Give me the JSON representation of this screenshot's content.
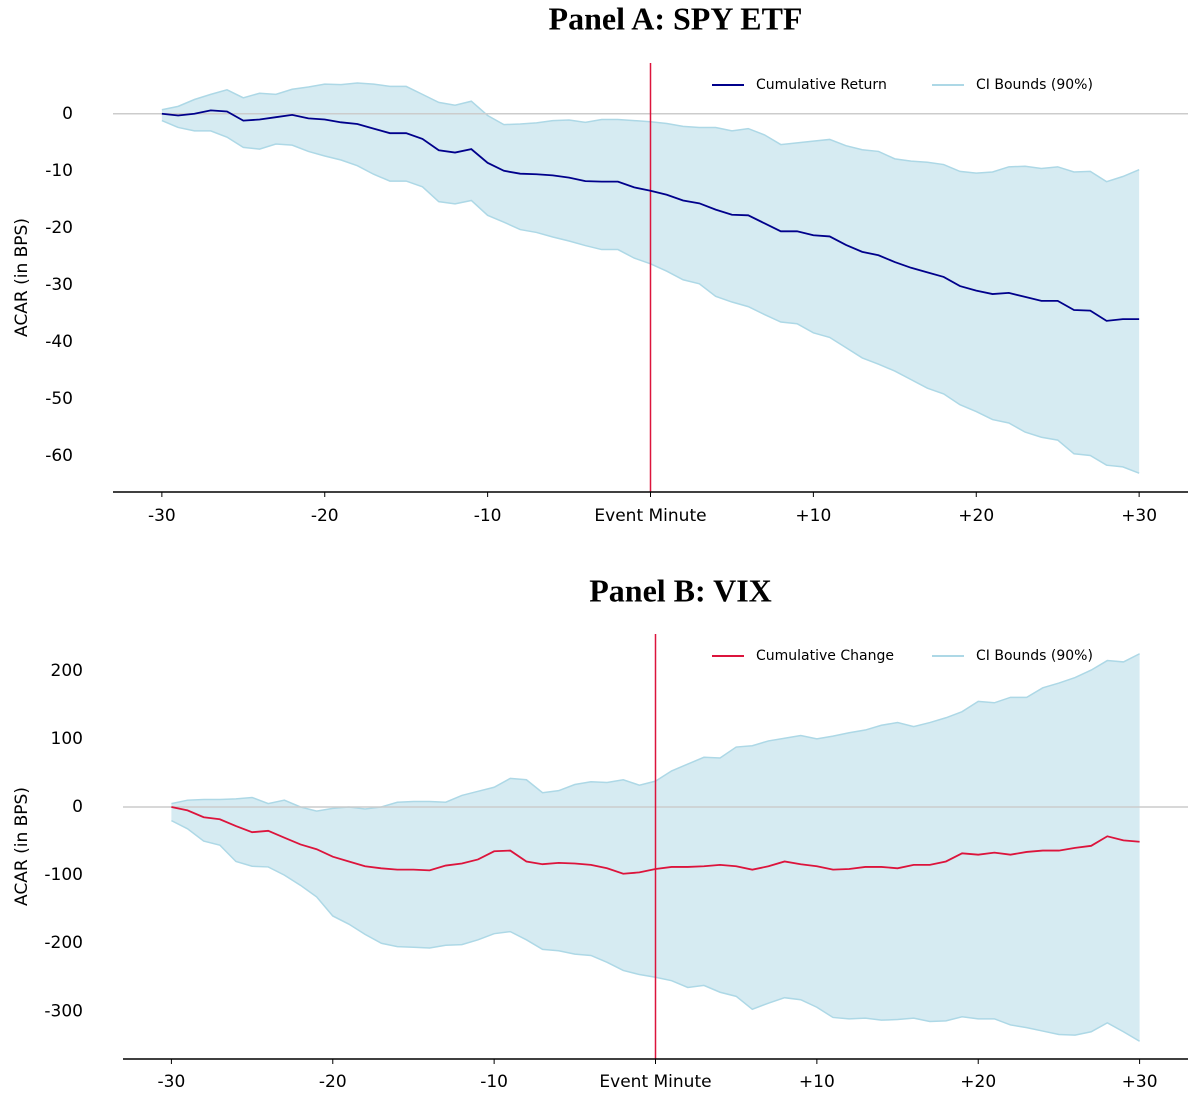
{
  "chart_data": [
    {
      "type": "line",
      "title": "Panel A: SPY ETF",
      "ylabel": "ACAR (in BPS)",
      "x": [
        -30,
        -29,
        -28,
        -27,
        -26,
        -25,
        -24,
        -23,
        -22,
        -21,
        -20,
        -19,
        -18,
        -17,
        -16,
        -15,
        -14,
        -13,
        -12,
        -11,
        -10,
        -9,
        -8,
        -7,
        -6,
        -5,
        -4,
        -3,
        -2,
        -1,
        0,
        1,
        2,
        3,
        4,
        5,
        6,
        7,
        8,
        9,
        10,
        11,
        12,
        13,
        14,
        15,
        16,
        17,
        18,
        19,
        20,
        21,
        22,
        23,
        24,
        25,
        26,
        27,
        28,
        29,
        30
      ],
      "series": [
        {
          "name": "Cumulative Return",
          "color": "#00008b",
          "values": [
            0,
            -0.3,
            0,
            0.6,
            0.4,
            -1.2,
            -1,
            -0.6,
            -0.2,
            -0.8,
            -1,
            -1.5,
            -1.8,
            -2.6,
            -3.4,
            -3.4,
            -4.4,
            -6.4,
            -6.8,
            -6.2,
            -8.6,
            -10,
            -10.5,
            -10.6,
            -10.8,
            -11.2,
            -11.8,
            -11.9,
            -11.9,
            -12.9,
            -13.5,
            -14.2,
            -15.2,
            -15.7,
            -16.8,
            -17.7,
            -17.8,
            -19.2,
            -20.6,
            -20.6,
            -21.3,
            -21.5,
            -23,
            -24.2,
            -24.8,
            -26,
            -27,
            -27.8,
            -28.6,
            -30.2,
            -31,
            -31.6,
            -31.4,
            -32.1,
            -32.8,
            -32.8,
            -34.4,
            -34.5,
            -36.3,
            -36,
            -36
          ]
        }
      ],
      "band": {
        "name": "CI Bounds (90%)",
        "color": "#add8e6",
        "upper": [
          0.7,
          1.3,
          2.5,
          3.4,
          4.2,
          2.8,
          3.6,
          3.4,
          4.3,
          4.7,
          5.2,
          5.1,
          5.4,
          5.2,
          4.8,
          4.8,
          3.4,
          2,
          1.5,
          2.2,
          -0.3,
          -1.9,
          -1.8,
          -1.6,
          -1.2,
          -1.1,
          -1.5,
          -1,
          -1,
          -1.2,
          -1.4,
          -1.7,
          -2.2,
          -2.4,
          -2.4,
          -3,
          -2.6,
          -3.7,
          -5.4,
          -5.1,
          -4.8,
          -4.5,
          -5.6,
          -6.3,
          -6.6,
          -7.9,
          -8.3,
          -8.5,
          -8.9,
          -10.1,
          -10.4,
          -10.2,
          -9.3,
          -9.2,
          -9.6,
          -9.3,
          -10.2,
          -10.1,
          -11.9,
          -11,
          -9.8
        ],
        "lower": [
          -1.2,
          -2.4,
          -3,
          -3,
          -4.1,
          -5.9,
          -6.2,
          -5.3,
          -5.5,
          -6.6,
          -7.4,
          -8.1,
          -9.1,
          -10.6,
          -11.8,
          -11.8,
          -12.8,
          -15.4,
          -15.8,
          -15.2,
          -17.8,
          -19,
          -20.3,
          -20.8,
          -21.6,
          -22.3,
          -23.1,
          -23.8,
          -23.8,
          -25.3,
          -26.3,
          -27.6,
          -29.1,
          -29.8,
          -32,
          -33,
          -33.8,
          -35.2,
          -36.5,
          -36.8,
          -38.4,
          -39.2,
          -41,
          -42.8,
          -43.9,
          -45.1,
          -46.6,
          -48.1,
          -49.1,
          -51,
          -52.2,
          -53.6,
          -54.2,
          -55.8,
          -56.7,
          -57.2,
          -59.6,
          -59.9,
          -61.6,
          -61.9,
          -63
        ]
      },
      "xlim": [
        -33,
        33
      ],
      "xticks": [
        -30,
        -20,
        -10,
        {
          "value": 0,
          "label": "Event Minute"
        },
        {
          "value": 10,
          "label": "+10"
        },
        {
          "value": 20,
          "label": "+20"
        },
        {
          "value": 30,
          "label": "+30"
        }
      ],
      "ylim": [
        -66.3,
        8.9
      ],
      "yticks": [
        -60,
        -50,
        -40,
        -30,
        -20,
        -10,
        0
      ],
      "hline": 0,
      "hline_color": "#cccccc",
      "vline": 0,
      "vline_color": "#dc143c",
      "legend": "upper right"
    },
    {
      "type": "line",
      "title": "Panel B: VIX",
      "ylabel": "ACAR (in BPS)",
      "x": [
        -30,
        -29,
        -28,
        -27,
        -26,
        -25,
        -24,
        -23,
        -22,
        -21,
        -20,
        -19,
        -18,
        -17,
        -16,
        -15,
        -14,
        -13,
        -12,
        -11,
        -10,
        -9,
        -8,
        -7,
        -6,
        -5,
        -4,
        -3,
        -2,
        -1,
        0,
        1,
        2,
        3,
        4,
        5,
        6,
        7,
        8,
        9,
        10,
        11,
        12,
        13,
        14,
        15,
        16,
        17,
        18,
        19,
        20,
        21,
        22,
        23,
        24,
        25,
        26,
        27,
        28,
        29,
        30
      ],
      "series": [
        {
          "name": "Cumulative Change",
          "color": "#dc143c",
          "values": [
            0,
            -5,
            -15,
            -18,
            -28,
            -37,
            -35,
            -45,
            -55,
            -62,
            -73,
            -80,
            -87,
            -90,
            -92,
            -92,
            -93,
            -86,
            -83,
            -77,
            -65,
            -64,
            -80,
            -84,
            -82,
            -83,
            -85,
            -90,
            -98,
            -96,
            -91,
            -88,
            -88,
            -87,
            -85,
            -87,
            -92,
            -87,
            -80,
            -84,
            -87,
            -92,
            -91,
            -88,
            -88,
            -90,
            -85,
            -85,
            -80,
            -68,
            -70,
            -67,
            -70,
            -66,
            -64,
            -64,
            -60,
            -57,
            -43,
            -49,
            -51
          ]
        }
      ],
      "band": {
        "name": "CI Bounds (90%)",
        "color": "#add8e6",
        "upper": [
          5,
          10,
          11,
          11,
          12,
          14,
          5,
          10,
          0,
          -6,
          -2,
          0,
          -3,
          0,
          7,
          8,
          8,
          7,
          17,
          23,
          29,
          42,
          40,
          21,
          24,
          33,
          37,
          36,
          40,
          32,
          38,
          53,
          63,
          73,
          72,
          88,
          90,
          97,
          101,
          105,
          100,
          104,
          109,
          113,
          120,
          124,
          118,
          124,
          131,
          140,
          155,
          153,
          161,
          161,
          175,
          182,
          190,
          201,
          215,
          213,
          225
        ],
        "lower": [
          -20,
          -32,
          -50,
          -56,
          -80,
          -87,
          -88,
          -100,
          -115,
          -132,
          -160,
          -172,
          -187,
          -200,
          -205,
          -206,
          -207,
          -203,
          -202,
          -195,
          -186,
          -183,
          -195,
          -209,
          -211,
          -216,
          -218,
          -228,
          -240,
          -246,
          -250,
          -255,
          -265,
          -262,
          -272,
          -278,
          -297,
          -288,
          -280,
          -283,
          -294,
          -309,
          -311,
          -310,
          -313,
          -312,
          -310,
          -315,
          -314,
          -308,
          -311,
          -311,
          -320,
          -324,
          -329,
          -334,
          -335,
          -330,
          -317,
          -330,
          -344
        ]
      },
      "xlim": [
        -33,
        33
      ],
      "xticks": [
        -30,
        -20,
        -10,
        {
          "value": 0,
          "label": "Event Minute"
        },
        {
          "value": 10,
          "label": "+10"
        },
        {
          "value": 20,
          "label": "+20"
        },
        {
          "value": 30,
          "label": "+30"
        }
      ],
      "ylim": [
        -370,
        254
      ],
      "yticks": [
        -300,
        -200,
        -100,
        0,
        100,
        200
      ],
      "hline": 0,
      "hline_color": "#cccccc",
      "vline": 0,
      "vline_color": "#dc143c",
      "legend": "upper right"
    }
  ]
}
